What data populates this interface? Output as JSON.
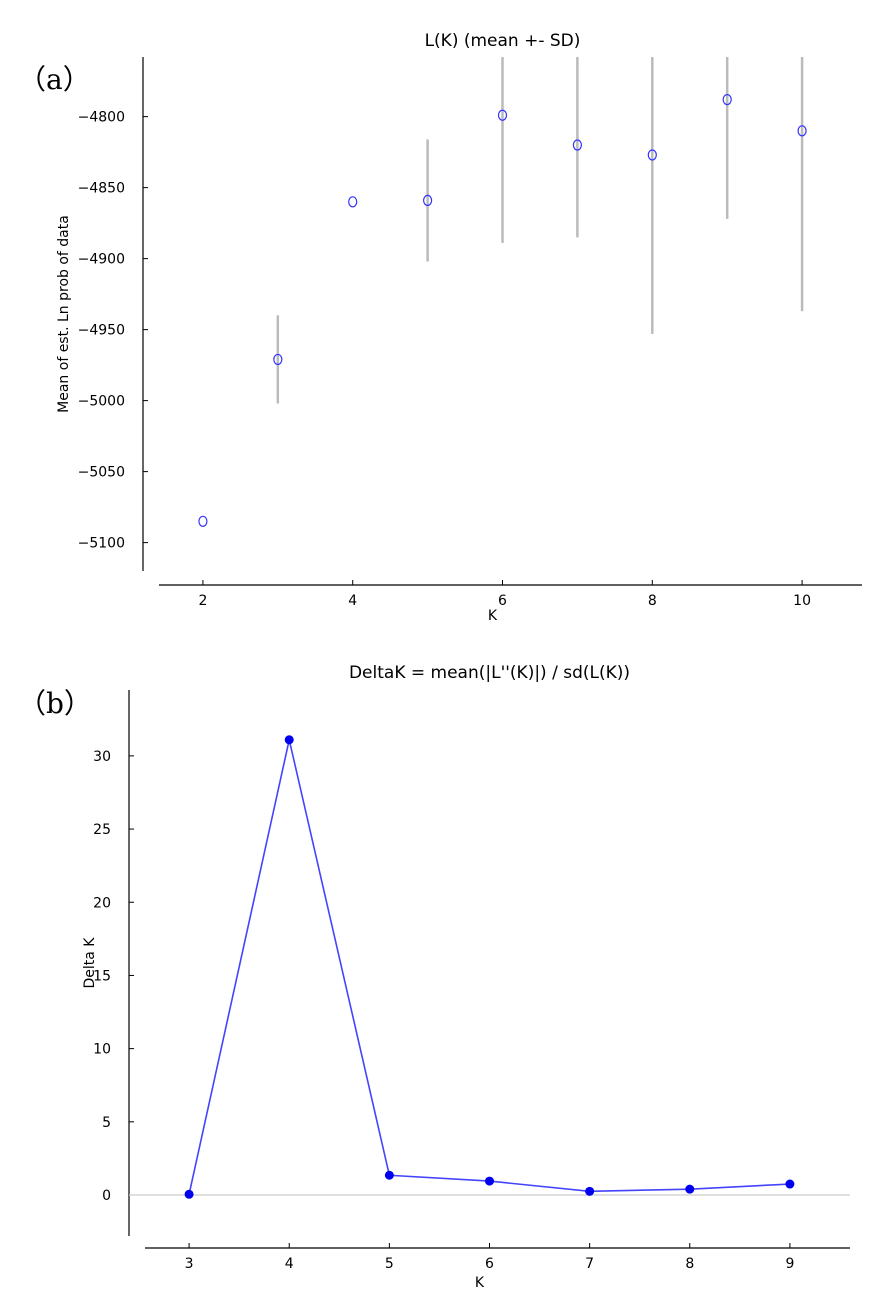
{
  "panels": {
    "a": {
      "label": "（a）"
    },
    "b": {
      "label": "（b）"
    }
  },
  "chart_data": [
    {
      "type": "scatter",
      "title": "L(K) (mean +- SD)",
      "xlabel": "K",
      "ylabel": "Mean of est. Ln prob of data",
      "x": [
        2,
        3,
        4,
        5,
        6,
        7,
        8,
        9,
        10
      ],
      "y": [
        -5085,
        -4971,
        -4860,
        -4859,
        -4799,
        -4820,
        -4827,
        -4788,
        -4810
      ],
      "sd": [
        3,
        31,
        2,
        43,
        90,
        65,
        126,
        84,
        127
      ],
      "xticks": [
        2,
        4,
        6,
        8,
        10
      ],
      "yticks": [
        -5100,
        -5050,
        -5000,
        -4950,
        -4900,
        -4850,
        -4800
      ],
      "xlim": [
        1.2,
        10.8
      ],
      "ylim": [
        -5120,
        -4758
      ],
      "marker": "open-circle",
      "marker_color": "#3333ff",
      "errorbar_color": "#bbbbbb",
      "grid": false
    },
    {
      "type": "line",
      "title": "DeltaK = mean(|L''(K)|) / sd(L(K))",
      "xlabel": "K",
      "ylabel": "Delta K",
      "x": [
        3,
        4,
        5,
        6,
        7,
        8,
        9
      ],
      "y": [
        0.05,
        31.1,
        1.35,
        0.95,
        0.25,
        0.4,
        0.75
      ],
      "xticks": [
        3,
        4,
        5,
        6,
        7,
        8,
        9
      ],
      "yticks": [
        0,
        5,
        10,
        15,
        20,
        25,
        30
      ],
      "xlim": [
        2.4,
        9.6
      ],
      "ylim": [
        -2.8,
        34.5
      ],
      "zero_line": true,
      "line_color": "#4444ff",
      "marker_color": "#0000ee",
      "grid": false
    }
  ]
}
